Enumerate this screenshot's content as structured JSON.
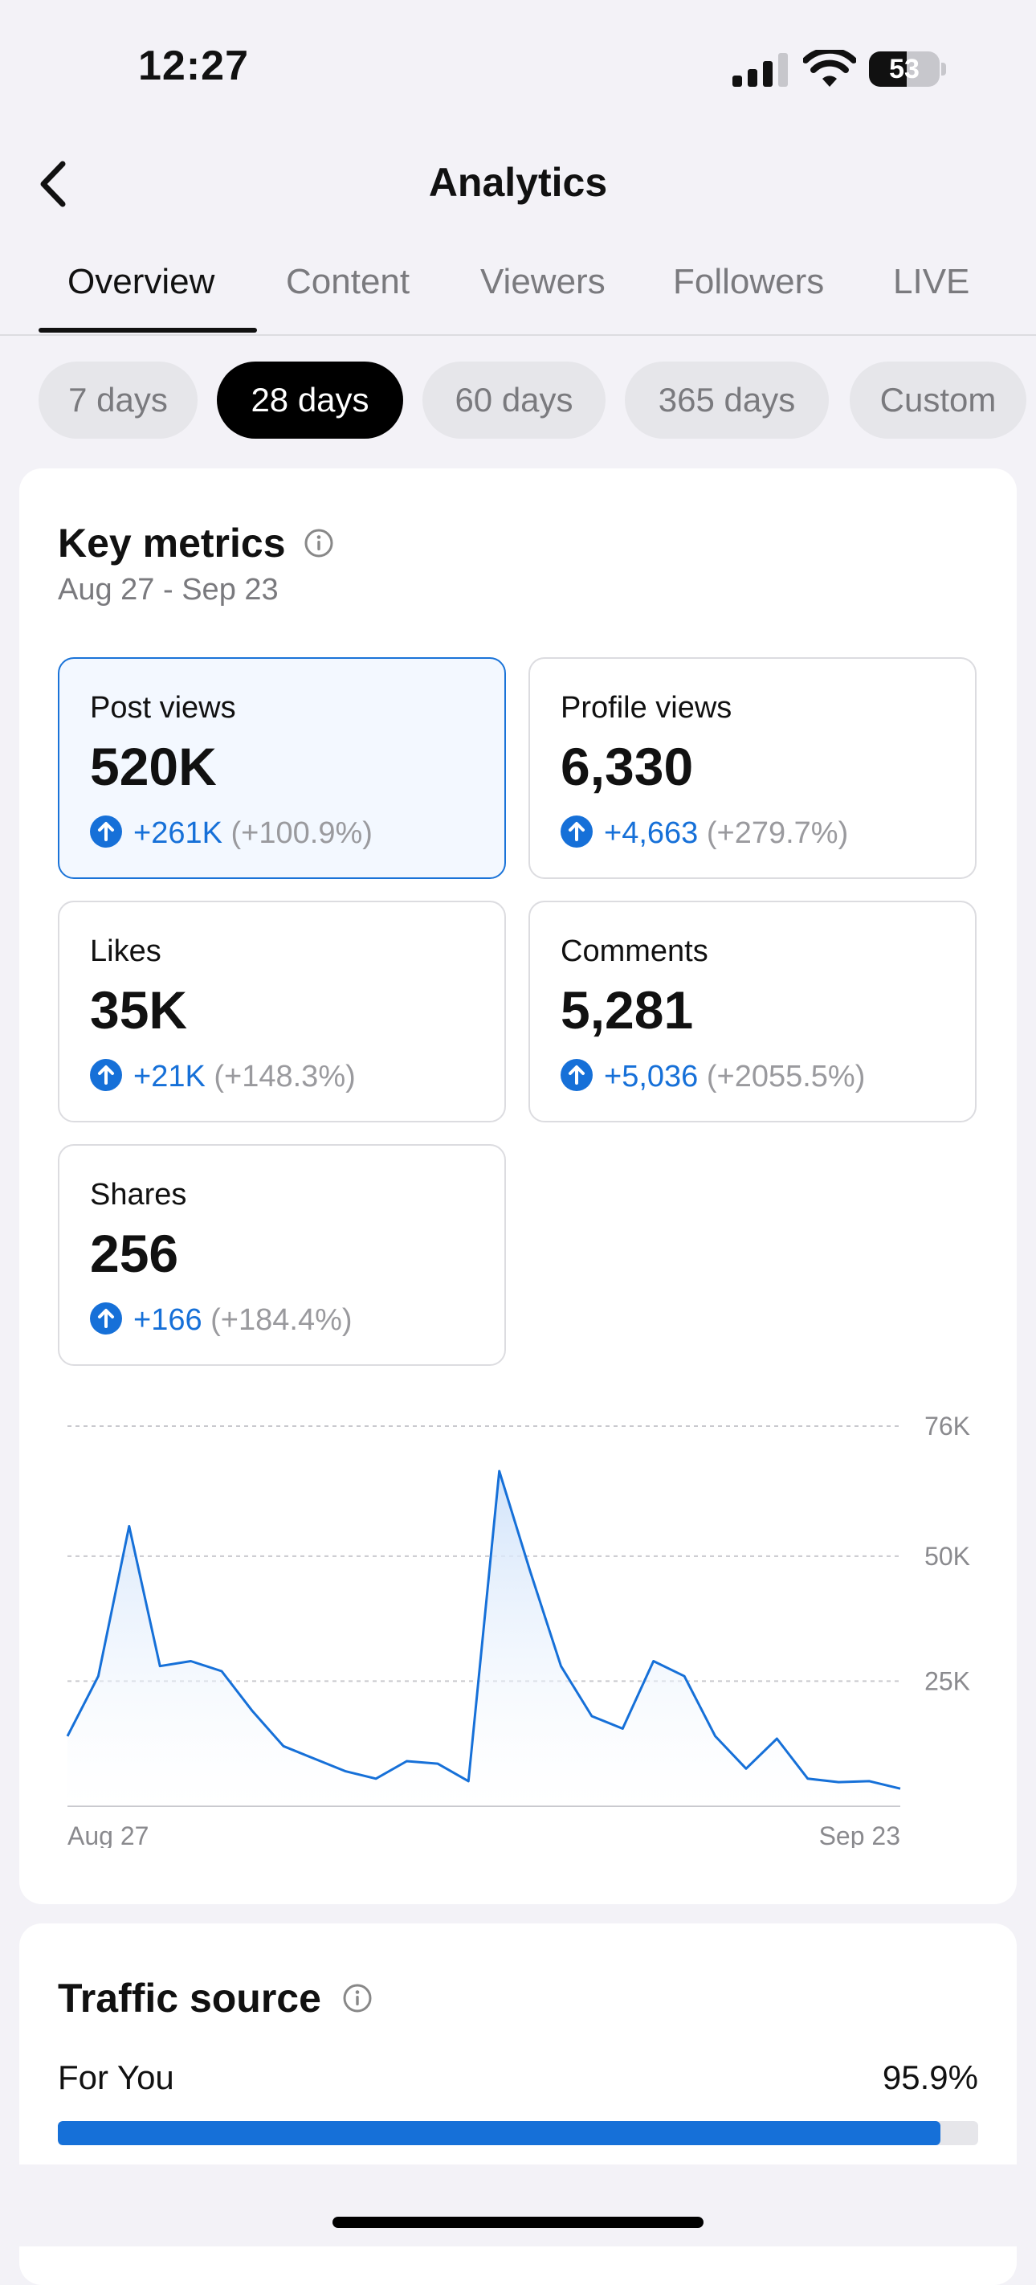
{
  "status_bar": {
    "time": "12:27",
    "battery_level": "53",
    "battery_fraction": 0.53
  },
  "header": {
    "title": "Analytics"
  },
  "tabs": [
    {
      "label": "Overview",
      "active": true
    },
    {
      "label": "Content"
    },
    {
      "label": "Viewers"
    },
    {
      "label": "Followers"
    },
    {
      "label": "LIVE"
    }
  ],
  "periods": [
    {
      "label": "7 days"
    },
    {
      "label": "28 days",
      "active": true
    },
    {
      "label": "60 days"
    },
    {
      "label": "365 days"
    },
    {
      "label": "Custom"
    }
  ],
  "key_metrics": {
    "title": "Key metrics",
    "date_range": "Aug 27 - Sep 23",
    "items": [
      {
        "label": "Post views",
        "value": "520K",
        "delta": "+261K",
        "pct": "(+100.9%)",
        "selected": true
      },
      {
        "label": "Profile views",
        "value": "6,330",
        "delta": "+4,663",
        "pct": "(+279.7%)"
      },
      {
        "label": "Likes",
        "value": "35K",
        "delta": "+21K",
        "pct": "(+148.3%)"
      },
      {
        "label": "Comments",
        "value": "5,281",
        "delta": "+5,036",
        "pct": "(+2055.5%)"
      },
      {
        "label": "Shares",
        "value": "256",
        "delta": "+166",
        "pct": "(+184.4%)"
      }
    ]
  },
  "chart_data": {
    "type": "area",
    "title": "",
    "xlabel": "",
    "ylabel": "",
    "x_tick_labels": [
      "Aug 27",
      "Sep 23"
    ],
    "y_tick_labels": [
      "76K",
      "50K",
      "25K"
    ],
    "y_ticks": [
      76000,
      50000,
      25000
    ],
    "ylim": [
      0,
      76000
    ],
    "grid": true,
    "series": [
      {
        "values": [
          14000,
          26000,
          56000,
          28000,
          29000,
          27000,
          19000,
          12000,
          9500,
          7000,
          5500,
          9000,
          8500,
          5000,
          67000,
          47000,
          28000,
          18000,
          15500,
          29000,
          26000,
          14000,
          7500,
          13500,
          5500,
          4800,
          5000,
          3500
        ]
      }
    ],
    "colors": {
      "line": "#1670d8",
      "fill": "#dceafb",
      "grid": "#c9c9ce"
    }
  },
  "traffic_source": {
    "title": "Traffic source",
    "rows": [
      {
        "label": "For You",
        "value": "95.9%",
        "fraction": 0.959
      }
    ]
  }
}
